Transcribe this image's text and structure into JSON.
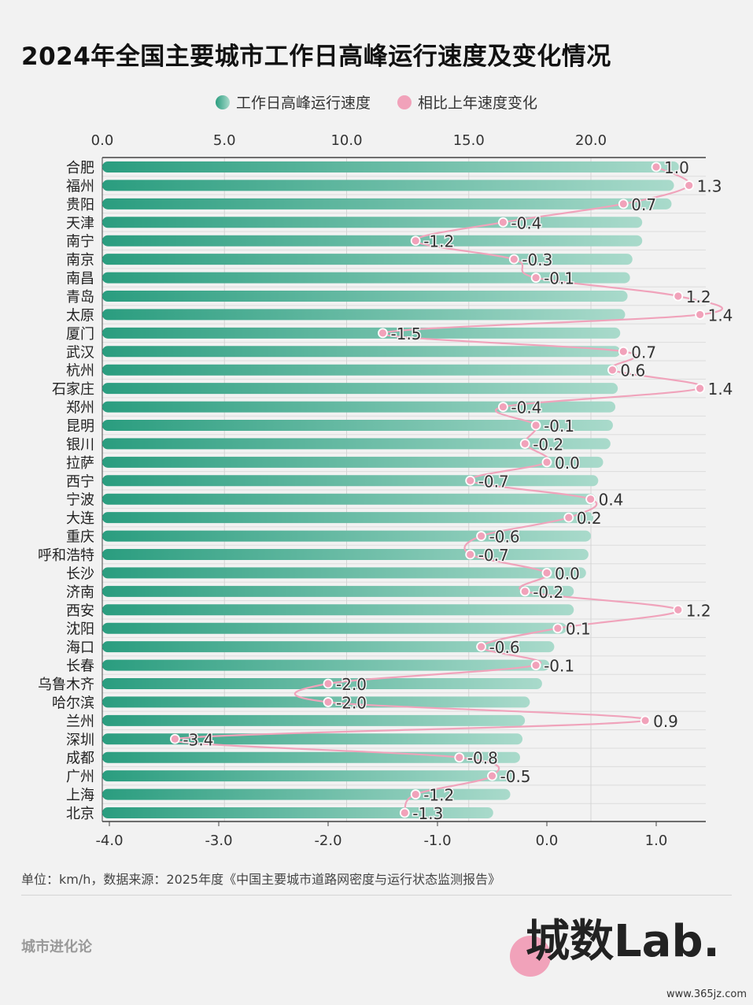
{
  "title": "2024年全国主要城市工作日高峰运行速度及变化情况",
  "legend": {
    "speed": "工作日高峰运行速度",
    "change": "相比上年速度变化"
  },
  "colors": {
    "bar_dark": "#2a9d7f",
    "bar_light": "#a9dacb",
    "line": "#f0a3bb",
    "grid": "#d9d9d9"
  },
  "chart_data": {
    "type": "bar",
    "title": "2024年全国主要城市工作日高峰运行速度及变化情况",
    "categories": [
      "合肥",
      "福州",
      "贵阳",
      "天津",
      "南宁",
      "南京",
      "南昌",
      "青岛",
      "太原",
      "厦门",
      "武汉",
      "杭州",
      "石家庄",
      "郑州",
      "昆明",
      "银川",
      "拉萨",
      "西宁",
      "宁波",
      "大连",
      "重庆",
      "呼和浩特",
      "长沙",
      "济南",
      "西安",
      "沈阳",
      "海口",
      "长春",
      "乌鲁木齐",
      "哈尔滨",
      "兰州",
      "深圳",
      "成都",
      "广州",
      "上海",
      "北京"
    ],
    "series": [
      {
        "name": "工作日高峰运行速度",
        "type": "bar",
        "axis": "top",
        "values": [
          23.6,
          23.4,
          23.3,
          22.1,
          22.1,
          21.7,
          21.6,
          21.5,
          21.4,
          21.2,
          21.2,
          21.1,
          21.1,
          21.0,
          20.9,
          20.8,
          20.5,
          20.3,
          20.2,
          20.1,
          20.0,
          19.9,
          19.8,
          19.3,
          19.3,
          19.0,
          18.5,
          18.3,
          18.0,
          17.5,
          17.3,
          17.2,
          17.1,
          16.9,
          16.7,
          16.0
        ]
      },
      {
        "name": "相比上年速度变化",
        "type": "line",
        "axis": "bottom",
        "values": [
          1.0,
          1.3,
          0.7,
          -0.4,
          -1.2,
          -0.3,
          -0.1,
          1.2,
          1.4,
          -1.5,
          0.7,
          0.6,
          1.4,
          -0.4,
          -0.1,
          -0.2,
          0.0,
          -0.7,
          0.4,
          0.2,
          -0.6,
          -0.7,
          0.0,
          -0.2,
          1.2,
          0.1,
          -0.6,
          -0.1,
          -2.0,
          -2.0,
          0.9,
          -3.4,
          -0.8,
          -0.5,
          -1.2,
          -1.3
        ],
        "labels": [
          "1.0",
          "1.3",
          "0.7",
          "-0.4",
          "-1.2",
          "-0.3",
          "-0.1",
          "1.2",
          "1.4",
          "-1.5",
          "0.7",
          "0.6",
          "1.4",
          "-0.4",
          "-0.1",
          "-0.2",
          "0.0",
          "-0.7",
          "0.4",
          "0.2",
          "-0.6",
          "-0.7",
          "0.0",
          "-0.2",
          "1.2",
          "0.1",
          "-0.6",
          "-0.1",
          "-2.0",
          "-2.0",
          "0.9",
          "-3.4",
          "-0.8",
          "-0.5",
          "-1.2",
          "-1.3"
        ]
      }
    ],
    "top_axis": {
      "range": [
        0,
        24.7
      ],
      "ticks": [
        "0.0",
        "5.0",
        "10.0",
        "15.0",
        "20.0"
      ],
      "tick_values": [
        0,
        5,
        10,
        15,
        20
      ]
    },
    "bottom_axis": {
      "range": [
        -4.05,
        1.45
      ],
      "ticks": [
        "-4.0",
        "-3.0",
        "-2.0",
        "-1.0",
        "0.0",
        "1.0"
      ],
      "tick_values": [
        -4,
        -3,
        -2,
        -1,
        0,
        1
      ]
    },
    "grid": true,
    "legend_position": "top"
  },
  "footer": {
    "source": "单位：km/h，数据来源：2025年度《中国主要城市道路网密度与运行状态监测报告》",
    "brand": "城市进化论",
    "logo": "城数Lab.",
    "site": "www.365jz.com"
  }
}
